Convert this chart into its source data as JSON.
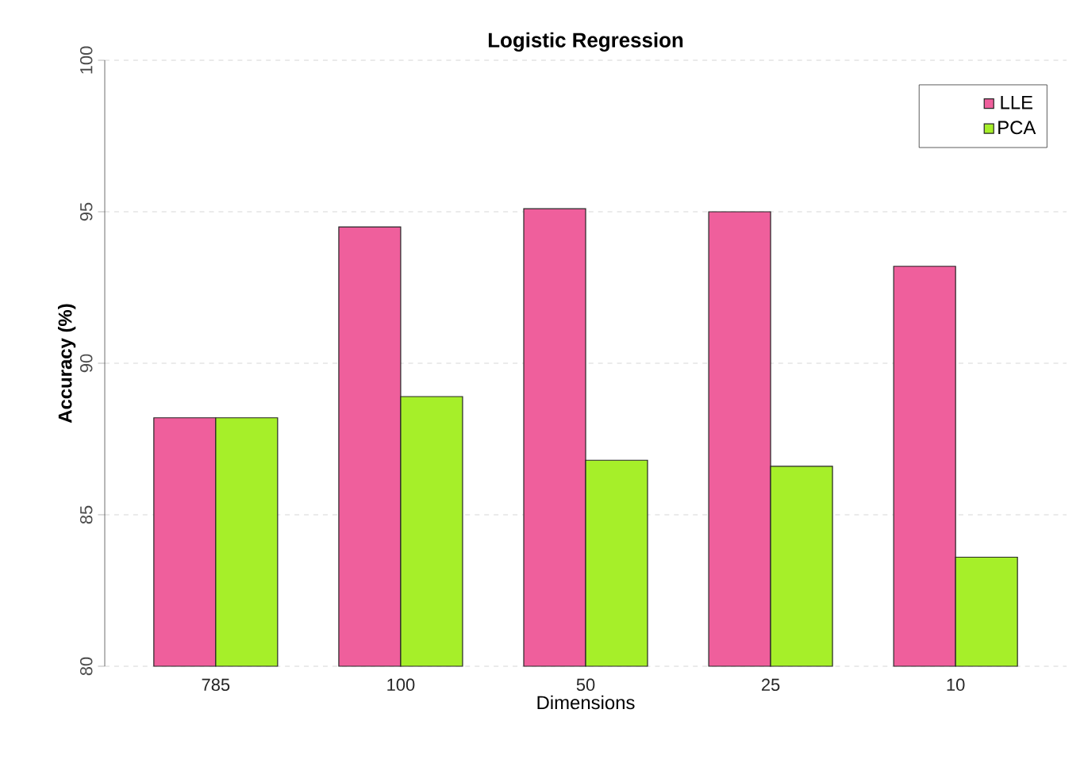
{
  "chart_data": {
    "type": "bar",
    "title": "Logistic Regression",
    "xlabel": "Dimensions",
    "ylabel": "Accuracy (%)",
    "categories": [
      "785",
      "100",
      "50",
      "25",
      "10"
    ],
    "series": [
      {
        "name": "LLE",
        "color": "#ef5f9c",
        "values": [
          88.2,
          94.5,
          95.1,
          95.0,
          93.2
        ]
      },
      {
        "name": "PCA",
        "color": "#a6ef29",
        "values": [
          88.2,
          88.9,
          86.8,
          86.6,
          83.6
        ]
      }
    ],
    "ylim": [
      80,
      100
    ],
    "yticks": [
      80,
      85,
      90,
      95,
      100
    ],
    "grid": "y",
    "legend": "top right",
    "marker": "square"
  }
}
